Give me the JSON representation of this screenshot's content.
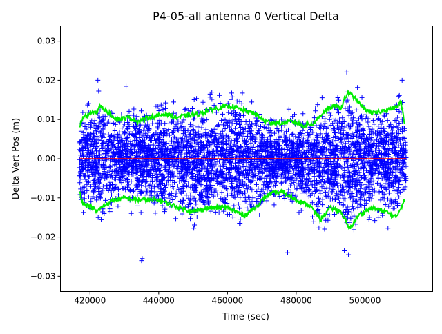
{
  "chart_data": {
    "type": "scatter",
    "title": "P4-05-all antenna 0 Vertical Delta",
    "xlabel": "Time (sec)",
    "ylabel": "Delta Vert Pos (m)",
    "xlim": [
      411400,
      519700
    ],
    "ylim": [
      -0.0339,
      0.0339
    ],
    "x_ticks": [
      420000,
      440000,
      460000,
      480000,
      500000
    ],
    "x_tick_labels": [
      "420000",
      "440000",
      "460000",
      "480000",
      "500000"
    ],
    "y_ticks": [
      0.03,
      0.02,
      0.01,
      0.0,
      -0.01,
      -0.02,
      -0.03
    ],
    "y_tick_labels": [
      "0.03",
      "0.02",
      "0.01",
      "0.00",
      "−0.01",
      "−0.02",
      "−0.03"
    ],
    "grid": false,
    "colors": {
      "scatter": "#0000ff",
      "envelope": "#00ee00",
      "mean": "#ff0000"
    },
    "series": [
      {
        "name": "delta vertical position",
        "style": "+ markers",
        "x_range": [
          417000,
          512000
        ],
        "n_points": 4500,
        "note": "dense cloud bounded roughly by envelope; extremes listed",
        "extremes": [
          [
            422300,
            0.02
          ],
          [
            430500,
            0.0185
          ],
          [
            435000,
            -0.026
          ],
          [
            435200,
            -0.0255
          ],
          [
            477500,
            -0.024
          ],
          [
            494000,
            -0.0235
          ],
          [
            495200,
            -0.0245
          ],
          [
            510800,
            0.02
          ]
        ]
      },
      {
        "name": "upper envelope",
        "style": "line",
        "x": [
          417000,
          418000,
          420000,
          422000,
          423000,
          425000,
          428000,
          431000,
          434000,
          437000,
          440000,
          442000,
          445000,
          448000,
          452000,
          455000,
          458000,
          461000,
          464000,
          468000,
          471000,
          475000,
          479000,
          482000,
          485000,
          488000,
          491000,
          493000,
          495000,
          497000,
          500000,
          503000,
          506000,
          509000,
          510500,
          511500
        ],
        "y": [
          0.0085,
          0.0105,
          0.0115,
          0.012,
          0.0135,
          0.012,
          0.01,
          0.0105,
          0.0095,
          0.0105,
          0.011,
          0.0115,
          0.0105,
          0.011,
          0.0115,
          0.0125,
          0.013,
          0.0135,
          0.0125,
          0.0115,
          0.0095,
          0.009,
          0.0095,
          0.0085,
          0.009,
          0.012,
          0.0135,
          0.013,
          0.017,
          0.0155,
          0.0125,
          0.0115,
          0.0125,
          0.013,
          0.0145,
          0.009
        ]
      },
      {
        "name": "lower envelope",
        "style": "line",
        "x": [
          417000,
          418000,
          420000,
          422000,
          424000,
          427000,
          430000,
          433000,
          436000,
          440000,
          443000,
          446000,
          450000,
          455000,
          460000,
          465000,
          468000,
          472000,
          476000,
          480000,
          484000,
          487000,
          490000,
          493000,
          495500,
          498000,
          502000,
          506000,
          509000,
          511500
        ],
        "y": [
          -0.0085,
          -0.0115,
          -0.012,
          -0.0135,
          -0.012,
          -0.0105,
          -0.01,
          -0.0105,
          -0.0105,
          -0.0105,
          -0.0115,
          -0.0125,
          -0.0135,
          -0.0125,
          -0.0125,
          -0.0145,
          -0.0125,
          -0.009,
          -0.0085,
          -0.0105,
          -0.012,
          -0.0155,
          -0.0125,
          -0.0135,
          -0.018,
          -0.0145,
          -0.0125,
          -0.0135,
          -0.015,
          -0.0105
        ]
      },
      {
        "name": "mean",
        "style": "line",
        "x": [
          417000,
          512000
        ],
        "y": [
          0.0,
          0.0
        ]
      }
    ]
  }
}
